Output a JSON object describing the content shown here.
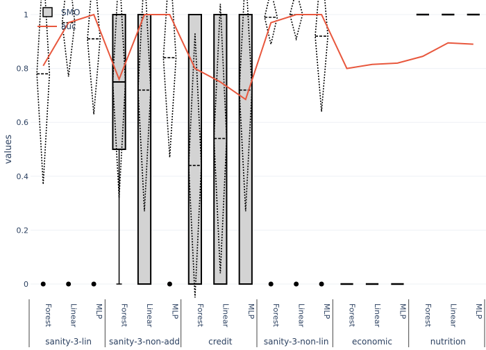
{
  "chart_data": {
    "type": "box",
    "title": "",
    "xlabel": "",
    "ylabel": "values",
    "ylim": [
      -0.05,
      1.05
    ],
    "yticks": [
      0,
      0.2,
      0.4,
      0.6,
      0.8,
      1
    ],
    "ytick_labels": [
      "0",
      "0.2",
      "0.4",
      "0.6",
      "0.8",
      "1"
    ],
    "grid": true,
    "legend_position": "top-left",
    "legend": [
      {
        "name": "SMO",
        "kind": "box",
        "color": "#000000",
        "fill": "#d3d3d3"
      },
      {
        "name": "auc",
        "kind": "line",
        "color": "#e8573d"
      }
    ],
    "groups": [
      {
        "label": "sanity-3-lin",
        "categories": [
          "Forest",
          "Linear",
          "MLP"
        ]
      },
      {
        "label": "sanity-3-non-add",
        "categories": [
          "Forest",
          "Linear",
          "MLP"
        ]
      },
      {
        "label": "credit",
        "categories": [
          "Forest",
          "Linear",
          "MLP"
        ]
      },
      {
        "label": "sanity-3-non-lin",
        "categories": [
          "Forest",
          "Linear",
          "MLP"
        ]
      },
      {
        "label": "economic",
        "categories": [
          "Forest",
          "Linear",
          "MLP"
        ]
      },
      {
        "label": "nutrition",
        "categories": [
          "Forest",
          "Linear",
          "MLP"
        ]
      }
    ],
    "smo_boxes": [
      {
        "group": "sanity-3-lin",
        "category": "Forest",
        "kind": "point",
        "value": 0
      },
      {
        "group": "sanity-3-lin",
        "category": "Linear",
        "kind": "point",
        "value": 0
      },
      {
        "group": "sanity-3-lin",
        "category": "MLP",
        "kind": "point",
        "value": 0
      },
      {
        "group": "sanity-3-non-add",
        "category": "Forest",
        "kind": "box",
        "min": 0,
        "q1": 0.5,
        "median": 0.75,
        "q3": 1,
        "max": 1
      },
      {
        "group": "sanity-3-non-add",
        "category": "Linear",
        "kind": "box",
        "min": 0,
        "q1": 0,
        "median": 1,
        "q3": 1,
        "max": 1
      },
      {
        "group": "sanity-3-non-add",
        "category": "MLP",
        "kind": "point",
        "value": 0
      },
      {
        "group": "credit",
        "category": "Forest",
        "kind": "box",
        "min": 0,
        "q1": 0,
        "median": 0,
        "q3": 1,
        "max": 1
      },
      {
        "group": "credit",
        "category": "Linear",
        "kind": "box",
        "min": 0,
        "q1": 0,
        "median": 1,
        "q3": 1,
        "max": 1
      },
      {
        "group": "credit",
        "category": "MLP",
        "kind": "box",
        "min": 0,
        "q1": 0,
        "median": 1,
        "q3": 1,
        "max": 1
      },
      {
        "group": "sanity-3-non-lin",
        "category": "Forest",
        "kind": "point",
        "value": 0
      },
      {
        "group": "sanity-3-non-lin",
        "category": "Linear",
        "kind": "point",
        "value": 0
      },
      {
        "group": "sanity-3-non-lin",
        "category": "MLP",
        "kind": "point",
        "value": 0
      },
      {
        "group": "economic",
        "category": "Forest",
        "kind": "flat",
        "value": 0
      },
      {
        "group": "economic",
        "category": "Linear",
        "kind": "flat",
        "value": 0
      },
      {
        "group": "economic",
        "category": "MLP",
        "kind": "flat",
        "value": 0
      },
      {
        "group": "nutrition",
        "category": "Forest",
        "kind": "flat",
        "value": 1
      },
      {
        "group": "nutrition",
        "category": "Linear",
        "kind": "flat",
        "value": 1
      },
      {
        "group": "nutrition",
        "category": "MLP",
        "kind": "flat",
        "value": 1
      }
    ],
    "mean_sd_diamonds": [
      {
        "group": "sanity-3-lin",
        "category": "Forest",
        "mean": 0.78,
        "sd": 0.41
      },
      {
        "group": "sanity-3-lin",
        "category": "Linear",
        "mean": 0.97,
        "sd": 0.2
      },
      {
        "group": "sanity-3-lin",
        "category": "MLP",
        "mean": 0.91,
        "sd": 0.28
      },
      {
        "group": "sanity-3-non-add",
        "category": "Forest",
        "mean": 0.75,
        "sd": 0.43
      },
      {
        "group": "sanity-3-non-add",
        "category": "Linear",
        "mean": 0.72,
        "sd": 0.45
      },
      {
        "group": "sanity-3-non-add",
        "category": "MLP",
        "mean": 0.84,
        "sd": 0.37
      },
      {
        "group": "credit",
        "category": "Forest",
        "mean": 0.44,
        "sd": 0.49
      },
      {
        "group": "credit",
        "category": "Linear",
        "mean": 0.54,
        "sd": 0.5
      },
      {
        "group": "credit",
        "category": "MLP",
        "mean": 0.72,
        "sd": 0.45
      },
      {
        "group": "sanity-3-non-lin",
        "category": "Forest",
        "mean": 0.99,
        "sd": 0.1
      },
      {
        "group": "sanity-3-non-lin",
        "category": "Linear",
        "mean": 1.0,
        "sd": 0.09
      },
      {
        "group": "sanity-3-non-lin",
        "category": "MLP",
        "mean": 0.92,
        "sd": 0.28
      }
    ],
    "auc_line": {
      "name": "auc",
      "values": [
        0.81,
        0.97,
        1.0,
        0.76,
        1.0,
        1.0,
        0.8,
        0.75,
        0.685,
        0.97,
        1.0,
        1.0,
        0.8,
        0.815,
        0.82,
        0.845,
        0.895,
        0.89
      ]
    }
  }
}
